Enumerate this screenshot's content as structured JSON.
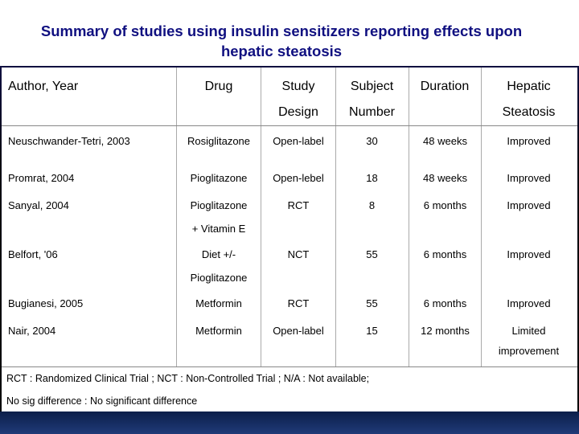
{
  "title": {
    "line1": "Summary of studies using insulin sensitizers reporting effects upon",
    "line2": "hepatic steatosis"
  },
  "header": {
    "author": "Author, Year",
    "drug": "Drug",
    "design_l1": "Study",
    "design_l2": "Design",
    "subject_l1": "Subject",
    "subject_l2": "Number",
    "duration": "Duration",
    "steatosis_l1": "Hepatic",
    "steatosis_l2": "Steatosis"
  },
  "rows": [
    {
      "author": "Neuschwander-Tetri, 2003",
      "drug": "Rosiglitazone",
      "drug2": "",
      "design": "Open-label",
      "subject": "30",
      "duration": "48 weeks",
      "steatosis": "Improved",
      "steatosis2": ""
    },
    {
      "author": "Promrat, 2004",
      "drug": "Pioglitazone",
      "drug2": "",
      "design": "Open-lebel",
      "subject": "18",
      "duration": "48 weeks",
      "steatosis": "Improved",
      "steatosis2": ""
    },
    {
      "author": "Sanyal, 2004",
      "drug": "Pioglitazone",
      "drug2": "+ Vitamin E",
      "design": "RCT",
      "subject": "8",
      "duration": "6 months",
      "steatosis": "Improved",
      "steatosis2": ""
    },
    {
      "author": "Belfort, '06",
      "drug": "Diet +/-",
      "drug2": "Pioglitazone",
      "design": "NCT",
      "subject": "55",
      "duration": "6 months",
      "steatosis": "Improved",
      "steatosis2": ""
    },
    {
      "author": "Bugianesi, 2005",
      "drug": "Metformin",
      "drug2": "",
      "design": "RCT",
      "subject": "55",
      "duration": "6 months",
      "steatosis": "Improved",
      "steatosis2": ""
    },
    {
      "author": "Nair, 2004",
      "drug": "Metformin",
      "drug2": "",
      "design": "Open-label",
      "subject": "15",
      "duration": "12 months",
      "steatosis": "Limited",
      "steatosis2": "improvement"
    }
  ],
  "footnote": {
    "line1": "RCT : Randomized Clinical Trial ;  NCT : Non-Controlled Trial ; N/A : Not available;",
    "line2": "No sig difference : No significant difference"
  }
}
